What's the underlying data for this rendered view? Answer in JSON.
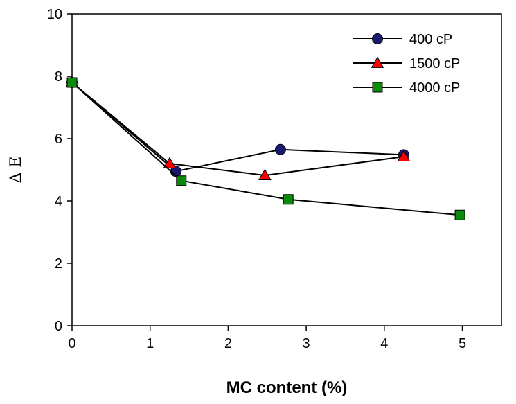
{
  "chart_data": {
    "type": "line",
    "title": "",
    "xlabel": "MC content (%)",
    "ylabel": "Δ E",
    "xlim": [
      0,
      5.5
    ],
    "ylim": [
      0,
      10
    ],
    "xticks": [
      0,
      1,
      2,
      3,
      4,
      5
    ],
    "yticks": [
      0,
      2,
      4,
      6,
      8,
      10
    ],
    "grid": false,
    "legend_position": "top-right",
    "series": [
      {
        "name": "400 cP",
        "marker": "circle",
        "color": "#191970",
        "x": [
          0,
          1.33,
          2.67,
          4.25
        ],
        "y": [
          7.8,
          4.95,
          5.65,
          5.48
        ]
      },
      {
        "name": "1500 cP",
        "marker": "triangle",
        "color": "#ff0000",
        "x": [
          0,
          1.25,
          2.47,
          4.25
        ],
        "y": [
          7.8,
          5.2,
          4.82,
          5.42
        ]
      },
      {
        "name": "4000 cP",
        "marker": "square",
        "color": "#0a8a0a",
        "x": [
          0,
          1.4,
          2.77,
          4.97
        ],
        "y": [
          7.8,
          4.65,
          4.05,
          3.55
        ]
      }
    ]
  }
}
